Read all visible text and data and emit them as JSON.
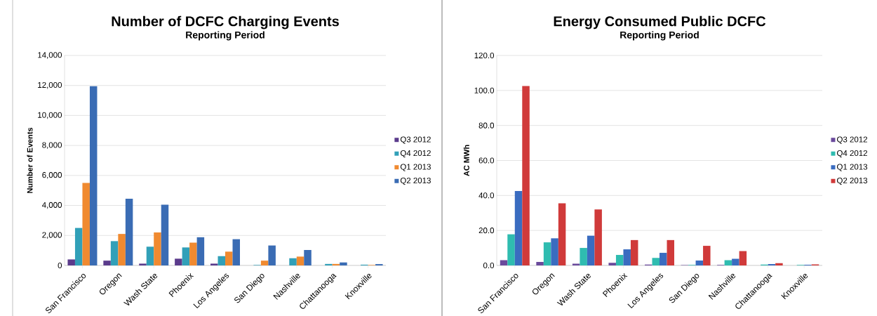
{
  "chart_data": [
    {
      "type": "bar",
      "title": "Number of DCFC Charging Events",
      "subtitle": "Reporting Period",
      "ylabel": "Number of Events",
      "categories": [
        "San Francisco",
        "Oregon",
        "Wash State",
        "Phoenix",
        "Los Angeles",
        "San Diego",
        "Nashville",
        "Chattanooga",
        "Knoxville"
      ],
      "series": [
        {
          "name": "Q3 2012",
          "color": "#5b3b8c",
          "values": [
            400,
            320,
            120,
            450,
            120,
            null,
            null,
            null,
            null
          ]
        },
        {
          "name": "Q4 2012",
          "color": "#31a0b8",
          "values": [
            2500,
            1620,
            1250,
            1200,
            620,
            30,
            480,
            100,
            50
          ]
        },
        {
          "name": "Q1 2013",
          "color": "#f08a30",
          "values": [
            5500,
            2100,
            2200,
            1520,
            920,
            320,
            590,
            100,
            30
          ]
        },
        {
          "name": "Q2 2013",
          "color": "#3a6cb4",
          "values": [
            11950,
            4450,
            4050,
            1880,
            1750,
            1330,
            1030,
            200,
            90
          ]
        }
      ],
      "ylim": [
        0,
        14000
      ],
      "yticks": [
        0,
        {
          "value": 2000,
          "label": "2,000"
        },
        {
          "value": 4000,
          "label": "4,000"
        },
        {
          "value": 6000,
          "label": "6,000"
        },
        {
          "value": 8000,
          "label": "8,000"
        },
        {
          "value": 10000,
          "label": "10,000"
        },
        {
          "value": 12000,
          "label": "12,000"
        },
        {
          "value": 14000,
          "label": "14,000"
        }
      ],
      "grid": "y",
      "legend": "right"
    },
    {
      "type": "bar",
      "title": "Energy Consumed Public DCFC",
      "subtitle": "Reporting Period",
      "ylabel": "AC MWh",
      "categories": [
        "San Francisco",
        "Oregon",
        "Wash State",
        "Phoenix",
        "Los Angeles",
        "San Diego",
        "Nashville",
        "Chattanooga",
        "Knoxville"
      ],
      "series": [
        {
          "name": "Q3 2012",
          "color": "#6a4a9c",
          "values": [
            3.0,
            2.0,
            1.0,
            1.5,
            0.5,
            0.2,
            0.3,
            null,
            null
          ]
        },
        {
          "name": "Q4 2012",
          "color": "#2fbcb0",
          "values": [
            17.8,
            13.2,
            10.0,
            6.0,
            4.3,
            0.3,
            3.0,
            0.5,
            0.3
          ]
        },
        {
          "name": "Q1 2013",
          "color": "#3a6cc0",
          "values": [
            42.5,
            15.5,
            17.0,
            9.2,
            7.2,
            2.8,
            3.8,
            0.8,
            0.4
          ]
        },
        {
          "name": "Q2 2013",
          "color": "#d03a3a",
          "values": [
            102.5,
            35.5,
            32.0,
            14.5,
            14.5,
            11.2,
            8.2,
            1.3,
            0.6
          ]
        }
      ],
      "ylim": [
        0,
        120
      ],
      "yticks": [
        {
          "value": 0,
          "label": "0.0"
        },
        {
          "value": 20,
          "label": "20.0"
        },
        {
          "value": 40,
          "label": "40.0"
        },
        {
          "value": 60,
          "label": "60.0"
        },
        {
          "value": 80,
          "label": "80.0"
        },
        {
          "value": 100,
          "label": "100.0"
        },
        {
          "value": 120,
          "label": "120.0"
        }
      ],
      "grid": "y",
      "legend": "right"
    }
  ]
}
